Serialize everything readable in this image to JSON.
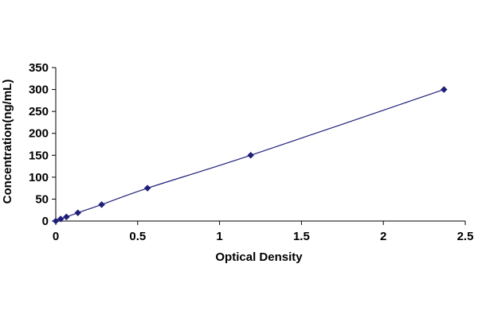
{
  "chart_data": {
    "type": "scatter",
    "title": "",
    "xlabel": "Optical Density",
    "ylabel": "Concentration(ng/mL)",
    "xlim": [
      0,
      2.5
    ],
    "ylim": [
      0,
      350
    ],
    "x_ticks": [
      "0",
      "0.5",
      "1",
      "1.5",
      "2",
      "2.5"
    ],
    "y_ticks": [
      "0",
      "50",
      "100",
      "150",
      "200",
      "250",
      "300",
      "350"
    ],
    "grid": false,
    "legend": "none",
    "series": [
      {
        "marker": "diamond",
        "line": "smooth",
        "color": "#1f1f7a",
        "points": [
          {
            "x": 0.0,
            "y": 0
          },
          {
            "x": 0.03,
            "y": 4.7
          },
          {
            "x": 0.065,
            "y": 9.4
          },
          {
            "x": 0.135,
            "y": 18.8
          },
          {
            "x": 0.28,
            "y": 37.5
          },
          {
            "x": 0.56,
            "y": 75
          },
          {
            "x": 1.19,
            "y": 150
          },
          {
            "x": 2.37,
            "y": 300
          }
        ]
      }
    ]
  }
}
